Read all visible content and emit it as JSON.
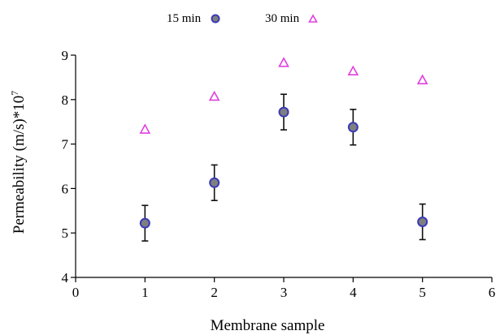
{
  "chart_data": {
    "type": "scatter",
    "title": "",
    "xlabel": "Membrane sample",
    "ylabel_main": "Permeability (m/s)*10",
    "ylabel_sup": "7",
    "xlim": [
      0,
      6
    ],
    "ylim": [
      4,
      9
    ],
    "xticks": [
      0,
      1,
      2,
      3,
      4,
      5,
      6
    ],
    "yticks": [
      4,
      5,
      6,
      7,
      8,
      9
    ],
    "grid": false,
    "legend_position": "top-center",
    "series": [
      {
        "name": "15 min",
        "marker": "circle",
        "color": "#7f7f7f",
        "edge_color": "#3a3ab8",
        "x": [
          1,
          2,
          3,
          4,
          5
        ],
        "y": [
          5.22,
          6.13,
          7.72,
          7.38,
          5.25
        ],
        "error": [
          0.4,
          0.4,
          0.4,
          0.4,
          0.4
        ]
      },
      {
        "name": "30 min",
        "marker": "triangle-open",
        "color": "#e040e0",
        "x": [
          1,
          2,
          3,
          4,
          5
        ],
        "y": [
          7.33,
          8.07,
          8.83,
          8.64,
          8.44
        ]
      }
    ]
  }
}
